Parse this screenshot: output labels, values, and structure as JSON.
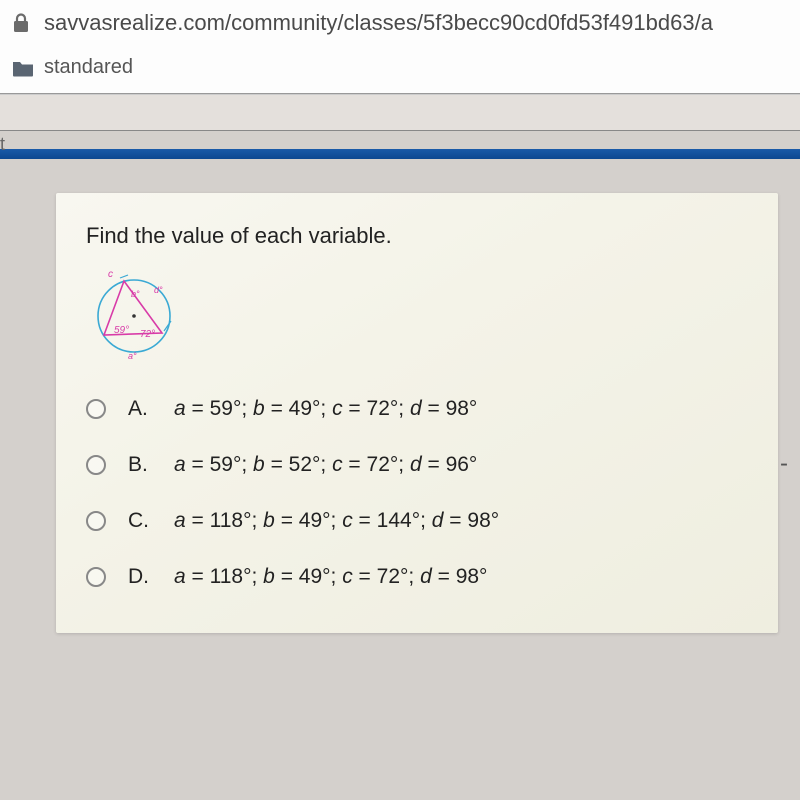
{
  "browser": {
    "url": "savvasrealize.com/community/classes/5f3becc90cd0fd53f491bd63/a",
    "bookmark_label": "standared"
  },
  "question": {
    "prompt": "Find the value of each variable.",
    "diagram": {
      "circle_color": "#3aa9d4",
      "triangle_color": "#d83ba8",
      "center_dot_color": "#222222",
      "angle_left": "59°",
      "angle_right": "72°",
      "label_top": "c",
      "label_b": "b°",
      "label_d_top": "d°",
      "label_a_bottom": "a°"
    },
    "options": [
      {
        "letter": "A.",
        "text_html": "<i>a</i> = 59°; <i>b</i> = 49°; <i>c</i> = 72°; <i>d</i> = 98°"
      },
      {
        "letter": "B.",
        "text_html": "<i>a</i> = 59°; <i>b</i> = 52°; <i>c</i> = 72°; <i>d</i> = 96°"
      },
      {
        "letter": "C.",
        "text_html": "<i>a</i> = 118°; <i>b</i> = 49°; <i>c</i> = 144°; <i>d</i> = 98°"
      },
      {
        "letter": "D.",
        "text_html": "<i>a</i> = 118°; <i>b</i> = 49°; <i>c</i> = 72°; <i>d</i> = 98°"
      }
    ]
  },
  "colors": {
    "page_bg": "#d4d0cc",
    "card_bg": "#f6f5ec",
    "blue_bar": "#0d4890"
  }
}
